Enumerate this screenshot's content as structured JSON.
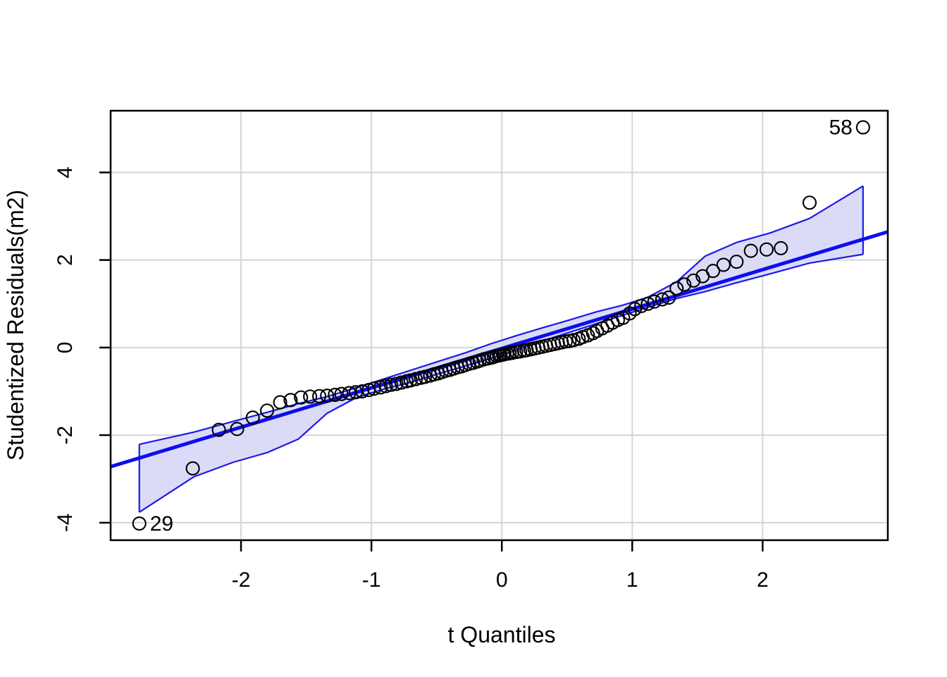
{
  "chart_data": {
    "type": "scatter",
    "subtype": "qq-plot",
    "title": "",
    "xlabel": "t Quantiles",
    "ylabel": "Studentized Residuals(m2)",
    "xlim": [
      -3.0,
      2.96
    ],
    "ylim": [
      -4.4,
      5.41
    ],
    "xticks": [
      -2,
      -1,
      0,
      1,
      2
    ],
    "xtick_labels": [
      "-2",
      "-1",
      "0",
      "1",
      "2"
    ],
    "yticks": [
      -4,
      -2,
      0,
      2,
      4
    ],
    "ytick_labels": [
      "-4",
      "-2",
      "0",
      "2",
      "4"
    ],
    "grid": true,
    "legend": null,
    "reference_line": {
      "slope": 0.9,
      "intercept": -0.02
    },
    "points": [
      [
        -2.78,
        -4.02
      ],
      [
        -2.37,
        -2.76
      ],
      [
        -2.17,
        -1.88
      ],
      [
        -2.03,
        -1.86
      ],
      [
        -1.91,
        -1.6
      ],
      [
        -1.8,
        -1.44
      ],
      [
        -1.7,
        -1.25
      ],
      [
        -1.62,
        -1.2
      ],
      [
        -1.54,
        -1.14
      ],
      [
        -1.47,
        -1.12
      ],
      [
        -1.4,
        -1.11
      ],
      [
        -1.34,
        -1.1
      ],
      [
        -1.28,
        -1.08
      ],
      [
        -1.23,
        -1.06
      ],
      [
        -1.17,
        -1.04
      ],
      [
        -1.12,
        -1.02
      ],
      [
        -1.07,
        -1.0
      ],
      [
        -1.02,
        -0.97
      ],
      [
        -0.98,
        -0.94
      ],
      [
        -0.93,
        -0.91
      ],
      [
        -0.89,
        -0.88
      ],
      [
        -0.85,
        -0.85
      ],
      [
        -0.81,
        -0.83
      ],
      [
        -0.77,
        -0.8
      ],
      [
        -0.73,
        -0.77
      ],
      [
        -0.7,
        -0.75
      ],
      [
        -0.66,
        -0.72
      ],
      [
        -0.62,
        -0.69
      ],
      [
        -0.59,
        -0.67
      ],
      [
        -0.55,
        -0.64
      ],
      [
        -0.52,
        -0.61
      ],
      [
        -0.49,
        -0.59
      ],
      [
        -0.46,
        -0.56
      ],
      [
        -0.43,
        -0.53
      ],
      [
        -0.4,
        -0.51
      ],
      [
        -0.37,
        -0.48
      ],
      [
        -0.34,
        -0.45
      ],
      [
        -0.31,
        -0.43
      ],
      [
        -0.28,
        -0.4
      ],
      [
        -0.25,
        -0.37
      ],
      [
        -0.22,
        -0.35
      ],
      [
        -0.19,
        -0.32
      ],
      [
        -0.17,
        -0.3
      ],
      [
        -0.14,
        -0.27
      ],
      [
        -0.11,
        -0.25
      ],
      [
        -0.08,
        -0.23
      ],
      [
        -0.06,
        -0.21
      ],
      [
        -0.04,
        -0.19
      ],
      [
        -0.02,
        -0.18
      ],
      [
        -0.01,
        -0.17
      ],
      [
        0.01,
        -0.16
      ],
      [
        0.02,
        -0.15
      ],
      [
        0.04,
        -0.14
      ],
      [
        0.06,
        -0.13
      ],
      [
        0.08,
        -0.12
      ],
      [
        0.11,
        -0.1
      ],
      [
        0.14,
        -0.09
      ],
      [
        0.17,
        -0.07
      ],
      [
        0.19,
        -0.06
      ],
      [
        0.22,
        -0.04
      ],
      [
        0.25,
        -0.02
      ],
      [
        0.28,
        0.0
      ],
      [
        0.31,
        0.02
      ],
      [
        0.34,
        0.04
      ],
      [
        0.37,
        0.06
      ],
      [
        0.4,
        0.08
      ],
      [
        0.43,
        0.1
      ],
      [
        0.46,
        0.12
      ],
      [
        0.49,
        0.14
      ],
      [
        0.52,
        0.15
      ],
      [
        0.55,
        0.17
      ],
      [
        0.59,
        0.2
      ],
      [
        0.62,
        0.24
      ],
      [
        0.66,
        0.28
      ],
      [
        0.7,
        0.33
      ],
      [
        0.73,
        0.38
      ],
      [
        0.77,
        0.44
      ],
      [
        0.81,
        0.5
      ],
      [
        0.85,
        0.57
      ],
      [
        0.89,
        0.63
      ],
      [
        0.93,
        0.68
      ],
      [
        0.98,
        0.78
      ],
      [
        1.02,
        0.88
      ],
      [
        1.07,
        0.95
      ],
      [
        1.12,
        1.0
      ],
      [
        1.17,
        1.05
      ],
      [
        1.23,
        1.1
      ],
      [
        1.28,
        1.14
      ],
      [
        1.34,
        1.35
      ],
      [
        1.4,
        1.44
      ],
      [
        1.47,
        1.53
      ],
      [
        1.54,
        1.63
      ],
      [
        1.62,
        1.75
      ],
      [
        1.7,
        1.89
      ],
      [
        1.8,
        1.96
      ],
      [
        1.91,
        2.21
      ],
      [
        2.03,
        2.24
      ],
      [
        2.14,
        2.27
      ],
      [
        2.36,
        3.31
      ],
      [
        2.77,
        5.03
      ]
    ],
    "envelope": {
      "upper": [
        [
          -2.78,
          -2.21
        ],
        [
          -2.36,
          -1.93
        ],
        [
          -2.04,
          -1.67
        ],
        [
          -1.8,
          -1.48
        ],
        [
          -1.56,
          -1.28
        ],
        [
          -1.34,
          -1.12
        ],
        [
          -1.12,
          -0.92
        ],
        [
          -0.93,
          -0.74
        ],
        [
          -0.7,
          -0.52
        ],
        [
          -0.49,
          -0.32
        ],
        [
          -0.28,
          -0.12
        ],
        [
          -0.08,
          0.09
        ],
        [
          0.11,
          0.27
        ],
        [
          0.31,
          0.45
        ],
        [
          0.52,
          0.63
        ],
        [
          0.73,
          0.82
        ],
        [
          0.93,
          0.97
        ],
        [
          1.12,
          1.15
        ],
        [
          1.34,
          1.5
        ],
        [
          1.56,
          2.09
        ],
        [
          1.8,
          2.4
        ],
        [
          2.06,
          2.62
        ],
        [
          2.36,
          2.95
        ],
        [
          2.77,
          3.69
        ]
      ],
      "lower": [
        [
          -2.78,
          -3.76
        ],
        [
          -2.36,
          -2.95
        ],
        [
          -2.06,
          -2.62
        ],
        [
          -1.8,
          -2.4
        ],
        [
          -1.56,
          -2.09
        ],
        [
          -1.34,
          -1.5
        ],
        [
          -1.12,
          -1.15
        ],
        [
          -0.93,
          -0.97
        ],
        [
          -0.73,
          -0.82
        ],
        [
          -0.52,
          -0.63
        ],
        [
          -0.31,
          -0.45
        ],
        [
          -0.11,
          -0.27
        ],
        [
          0.08,
          -0.09
        ],
        [
          0.28,
          0.12
        ],
        [
          0.49,
          0.32
        ],
        [
          0.7,
          0.52
        ],
        [
          0.93,
          0.74
        ],
        [
          1.12,
          0.92
        ],
        [
          1.34,
          1.12
        ],
        [
          1.56,
          1.28
        ],
        [
          1.8,
          1.48
        ],
        [
          2.04,
          1.67
        ],
        [
          2.36,
          1.93
        ],
        [
          2.77,
          2.13
        ]
      ]
    },
    "outlier_labels": [
      {
        "label": "58",
        "t": 2.77,
        "v": 5.03,
        "side": "left"
      },
      {
        "label": "29",
        "t": -2.78,
        "v": -4.02,
        "side": "right"
      }
    ],
    "colors": {
      "line": "#0d0df0",
      "envelope_edge": "#1a1ae8",
      "envelope_fill": "#dbdbf7",
      "point": "#000000",
      "grid": "#d6d6d6",
      "axis": "#000000",
      "background": "#ffffff"
    }
  }
}
